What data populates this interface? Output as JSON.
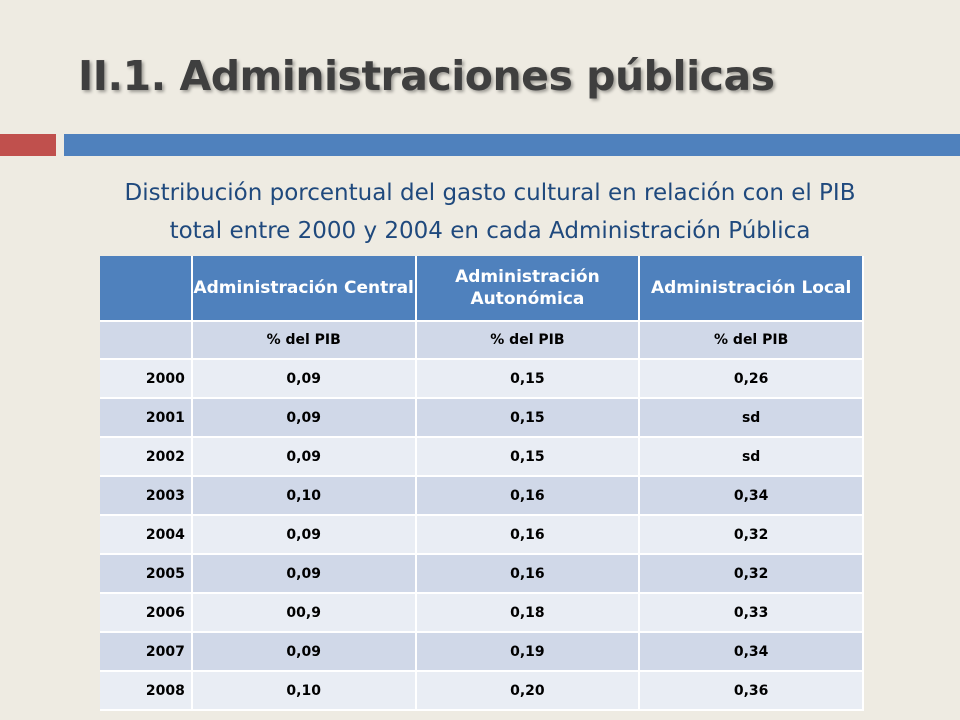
{
  "slide": {
    "title": "II.1. Administraciones públicas",
    "subtitle_line1": "Distribución porcentual del gasto cultural en relación con el PIB",
    "subtitle_line2": "total entre 2000 y 2004 en cada Administración Pública"
  },
  "table": {
    "columns": [
      "",
      "Administración Central",
      "Administración Autonómica",
      "Administración Local"
    ],
    "units": [
      "",
      "% del PIB",
      "% del PIB",
      "% del PIB"
    ],
    "rows": [
      [
        "2000",
        "0,09",
        "0,15",
        "0,26"
      ],
      [
        "2001",
        "0,09",
        "0,15",
        "sd"
      ],
      [
        "2002",
        "0,09",
        "0,15",
        "sd"
      ],
      [
        "2003",
        "0,10",
        "0,16",
        "0,34"
      ],
      [
        "2004",
        "0,09",
        "0,16",
        "0,32"
      ],
      [
        "2005",
        "0,09",
        "0,16",
        "0,32"
      ],
      [
        "2006",
        "00,9",
        "0,18",
        "0,33"
      ],
      [
        "2007",
        "0,09",
        "0,19",
        "0,34"
      ],
      [
        "2008",
        "0,10",
        "0,20",
        "0,36"
      ]
    ]
  },
  "colors": {
    "background": "#eeebe2",
    "accent_red": "#c0504d",
    "accent_blue": "#4f81bd",
    "title": "#3f3f3f",
    "subtitle": "#1f497d",
    "row_light": "#e9edf4",
    "row_dark": "#d0d8e8"
  }
}
